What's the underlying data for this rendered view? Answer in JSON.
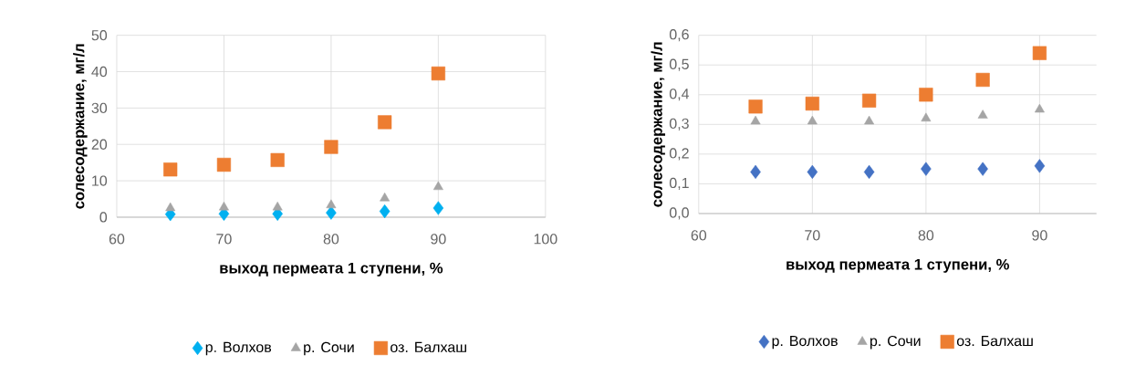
{
  "chart_data": [
    {
      "type": "scatter",
      "xlabel": "выход пермеата 1 ступени, %",
      "ylabel": "солесодержание, мг/л",
      "x": [
        65,
        70,
        75,
        80,
        85,
        90
      ],
      "xlim": [
        60,
        100
      ],
      "xticks": [
        60,
        70,
        80,
        90,
        100
      ],
      "ylim": [
        0,
        50
      ],
      "yticks": [
        0,
        10,
        20,
        30,
        40,
        50
      ],
      "grid": true,
      "legend": "bottom",
      "series": [
        {
          "name": "р. Волхов",
          "color": "#00b0f0",
          "marker": "diamond",
          "values": [
            0.8,
            0.9,
            0.9,
            1.2,
            1.6,
            2.5
          ]
        },
        {
          "name": "р. Сочи",
          "color": "#a5a5a5",
          "marker": "triangle",
          "values": [
            2.5,
            2.7,
            2.7,
            3.3,
            5.2,
            8.3
          ]
        },
        {
          "name": "оз. Балхаш",
          "color": "#ed7d31",
          "marker": "square",
          "values": [
            13.1,
            14.4,
            15.7,
            19.3,
            26.1,
            39.5
          ]
        }
      ]
    },
    {
      "type": "scatter",
      "xlabel": "выход пермеата 1 ступени, %",
      "ylabel": "солесодержание, мг/л",
      "x": [
        65,
        70,
        75,
        80,
        85,
        90
      ],
      "xlim": [
        60,
        95
      ],
      "xticks": [
        60,
        70,
        80,
        90
      ],
      "ylim": [
        0,
        0.6
      ],
      "yticks": [
        {
          "value": 0,
          "label": "0,0"
        },
        {
          "value": 0.1,
          "label": "0,1"
        },
        {
          "value": 0.2,
          "label": "0,2"
        },
        {
          "value": 0.3,
          "label": "0,3"
        },
        {
          "value": 0.4,
          "label": "0,4"
        },
        {
          "value": 0.5,
          "label": "0,5"
        },
        {
          "value": 0.6,
          "label": "0,6"
        }
      ],
      "grid": true,
      "legend": "bottom",
      "series": [
        {
          "name": "р. Волхов",
          "color": "#4472c4",
          "marker": "diamond",
          "values": [
            0.14,
            0.14,
            0.14,
            0.15,
            0.15,
            0.16
          ]
        },
        {
          "name": "р. Сочи",
          "color": "#a5a5a5",
          "marker": "triangle",
          "values": [
            0.31,
            0.31,
            0.31,
            0.32,
            0.33,
            0.35
          ]
        },
        {
          "name": "оз. Балхаш",
          "color": "#ed7d31",
          "marker": "square",
          "values": [
            0.36,
            0.37,
            0.38,
            0.4,
            0.45,
            0.54
          ]
        }
      ]
    }
  ]
}
